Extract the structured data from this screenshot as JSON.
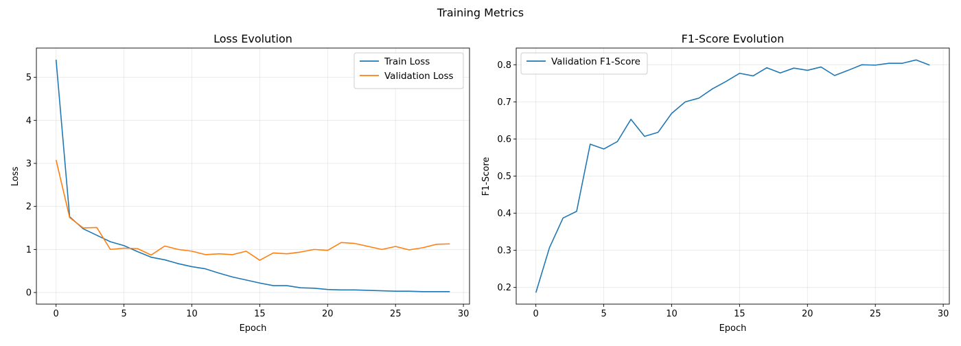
{
  "figure": {
    "title": "Training Metrics"
  },
  "chart_data": [
    {
      "type": "line",
      "title": "Loss Evolution",
      "xlabel": "Epoch",
      "ylabel": "Loss",
      "xlim": [
        -1.45,
        30.45
      ],
      "ylim": [
        -0.27,
        5.68
      ],
      "xticks": [
        0,
        5,
        10,
        15,
        20,
        25,
        30
      ],
      "yticks": [
        0,
        1,
        2,
        3,
        4,
        5
      ],
      "grid": true,
      "legend": "top-right",
      "x": [
        0,
        1,
        2,
        3,
        4,
        5,
        6,
        7,
        8,
        9,
        10,
        11,
        12,
        13,
        14,
        15,
        16,
        17,
        18,
        19,
        20,
        21,
        22,
        23,
        24,
        25,
        26,
        27,
        28,
        29
      ],
      "series": [
        {
          "name": "Train Loss",
          "color": "#1f77b4",
          "values": [
            5.41,
            1.76,
            1.48,
            1.33,
            1.18,
            1.09,
            0.95,
            0.82,
            0.76,
            0.67,
            0.6,
            0.55,
            0.45,
            0.36,
            0.29,
            0.22,
            0.16,
            0.16,
            0.11,
            0.1,
            0.07,
            0.06,
            0.06,
            0.05,
            0.04,
            0.03,
            0.03,
            0.02,
            0.02,
            0.02
          ]
        },
        {
          "name": "Validation Loss",
          "color": "#ff7f0e",
          "values": [
            3.08,
            1.74,
            1.5,
            1.51,
            1.0,
            1.03,
            1.02,
            0.87,
            1.08,
            1.0,
            0.96,
            0.88,
            0.9,
            0.88,
            0.96,
            0.75,
            0.92,
            0.9,
            0.94,
            1.0,
            0.98,
            1.16,
            1.14,
            1.07,
            1.0,
            1.07,
            0.99,
            1.04,
            1.12,
            1.13
          ]
        }
      ]
    },
    {
      "type": "line",
      "title": "F1-Score Evolution",
      "xlabel": "Epoch",
      "ylabel": "F1-Score",
      "xlim": [
        -1.45,
        30.45
      ],
      "ylim": [
        0.155,
        0.845
      ],
      "xticks": [
        0,
        5,
        10,
        15,
        20,
        25,
        30
      ],
      "yticks": [
        0.2,
        0.3,
        0.4,
        0.5,
        0.6,
        0.7,
        0.8
      ],
      "grid": true,
      "legend": "top-left",
      "x": [
        0,
        1,
        2,
        3,
        4,
        5,
        6,
        7,
        8,
        9,
        10,
        11,
        12,
        13,
        14,
        15,
        16,
        17,
        18,
        19,
        20,
        21,
        22,
        23,
        24,
        25,
        26,
        27,
        28,
        29
      ],
      "series": [
        {
          "name": "Validation F1-Score",
          "color": "#1f77b4",
          "values": [
            0.186,
            0.307,
            0.387,
            0.405,
            0.586,
            0.573,
            0.593,
            0.653,
            0.607,
            0.618,
            0.669,
            0.7,
            0.71,
            0.735,
            0.755,
            0.777,
            0.77,
            0.792,
            0.778,
            0.791,
            0.785,
            0.794,
            0.771,
            0.785,
            0.8,
            0.799,
            0.804,
            0.804,
            0.813,
            0.799
          ]
        }
      ]
    }
  ]
}
